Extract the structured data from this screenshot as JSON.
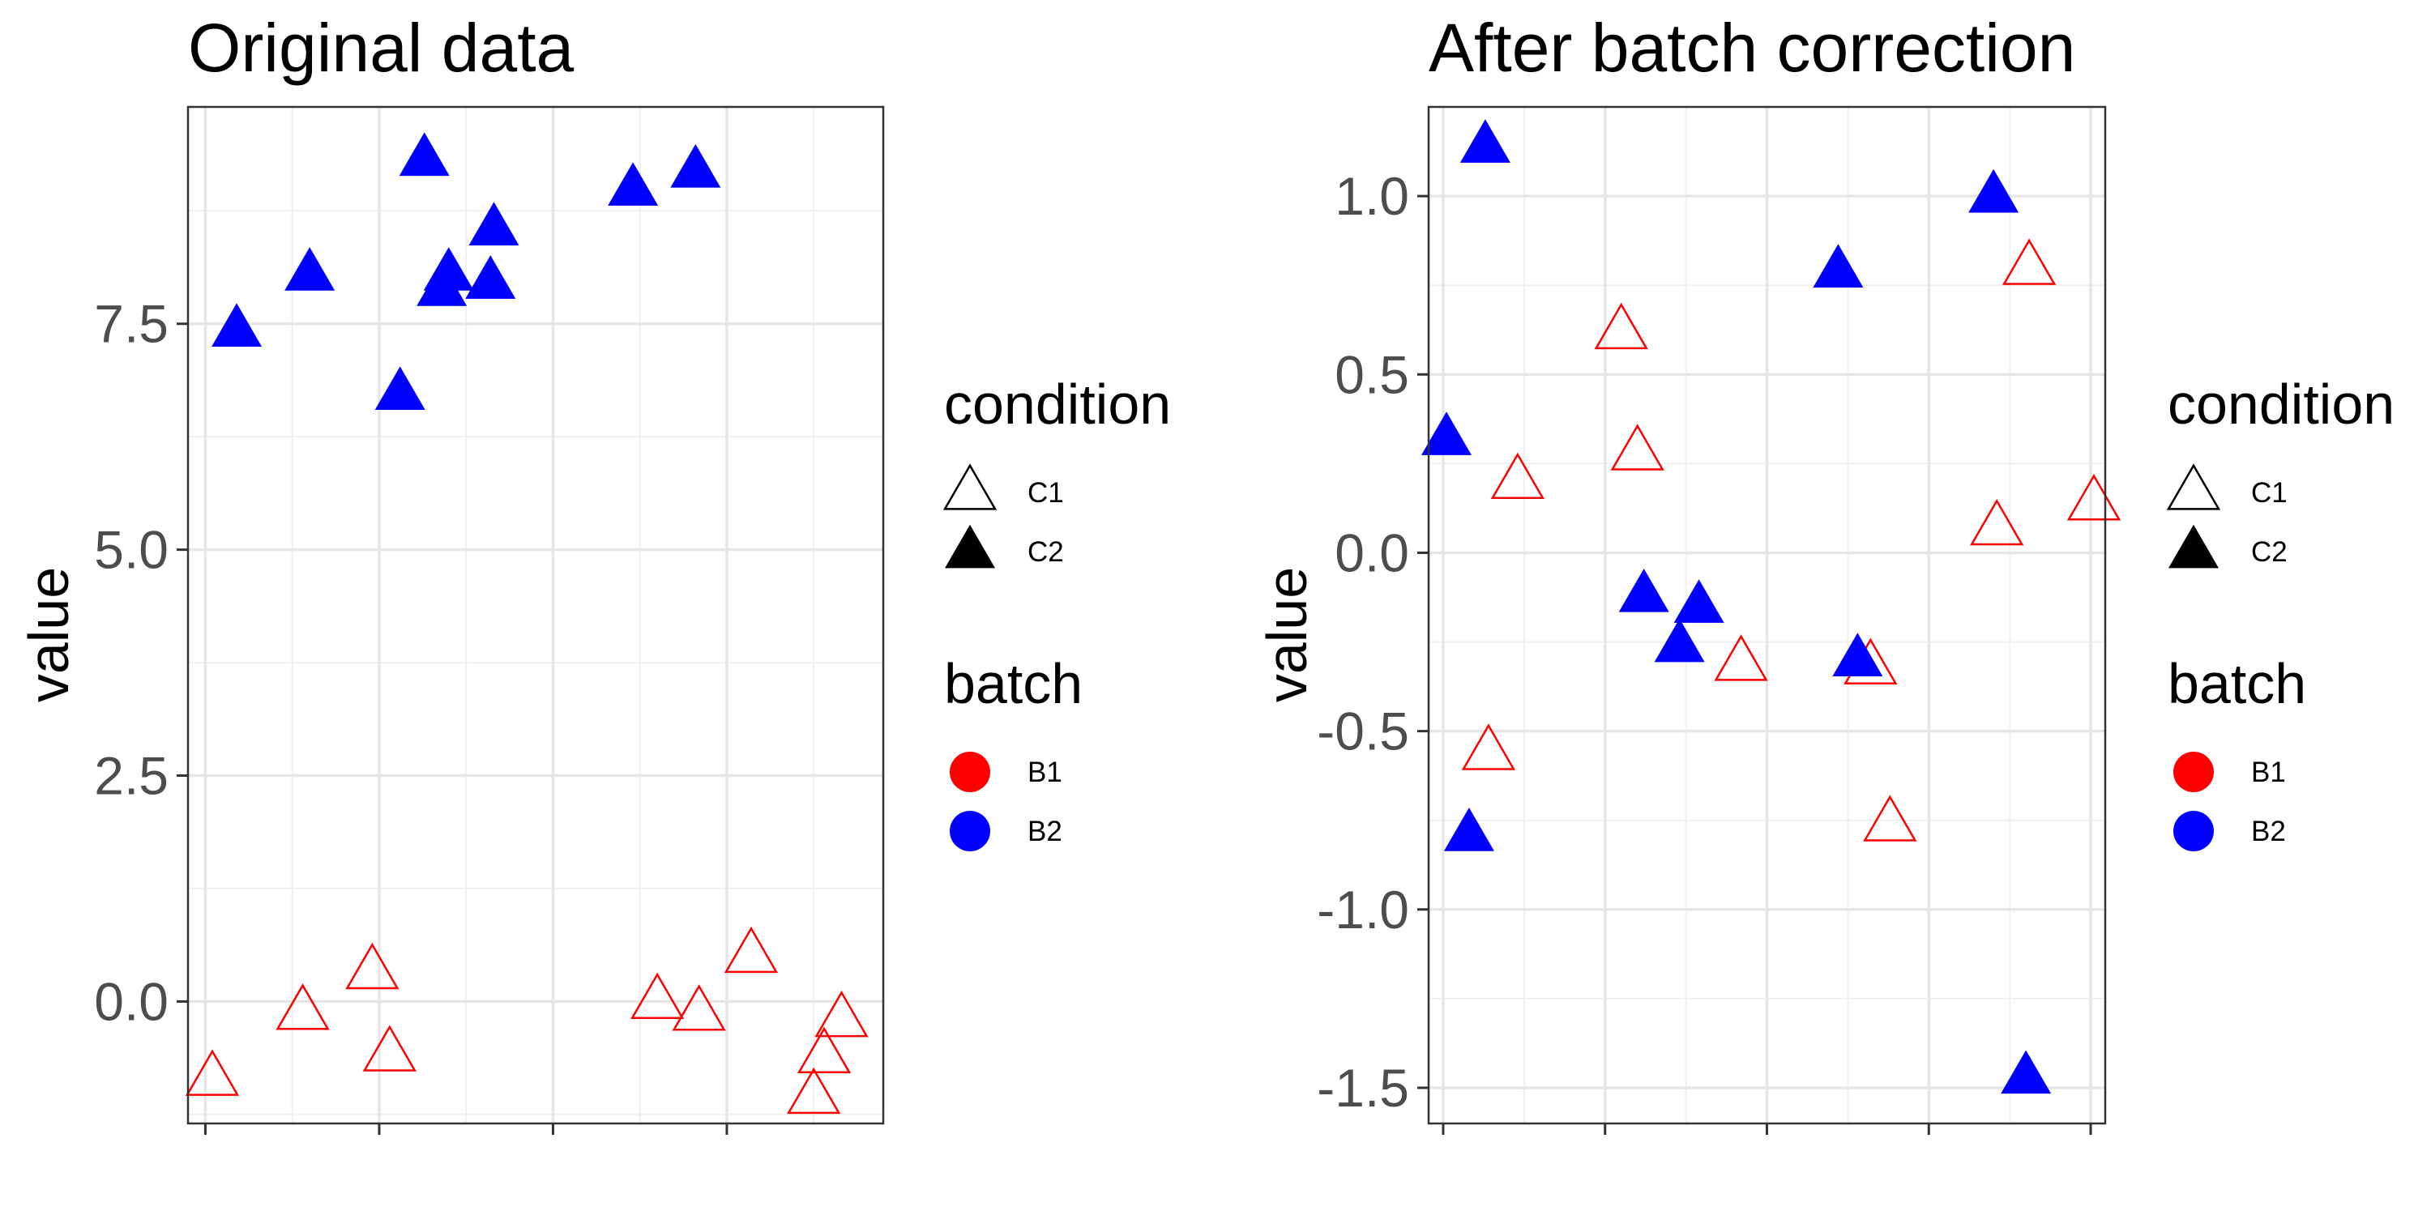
{
  "chart_data": [
    {
      "type": "scatter",
      "title": "Original data",
      "xlabel": "",
      "ylabel": "value",
      "xlim": [
        0.5,
        20.5
      ],
      "ylim": [
        -1.35,
        9.9
      ],
      "x_ticks": [
        1,
        6,
        11,
        16
      ],
      "y_ticks": [
        0.0,
        2.5,
        5.0,
        7.5
      ],
      "y_tick_labels": [
        "0.0",
        "2.5",
        "5.0",
        "7.5"
      ],
      "grid": true,
      "series": [
        {
          "batch": "B1",
          "condition": "C1",
          "color": "#ff0000",
          "points": [
            {
              "x": 1.2,
              "y": -0.85
            },
            {
              "x": 3.8,
              "y": -0.12
            },
            {
              "x": 5.8,
              "y": 0.33
            },
            {
              "x": 6.3,
              "y": -0.58
            },
            {
              "x": 14.0,
              "y": 0.0
            },
            {
              "x": 15.2,
              "y": -0.13
            },
            {
              "x": 16.7,
              "y": 0.51
            },
            {
              "x": 18.8,
              "y": -0.6
            },
            {
              "x": 18.5,
              "y": -1.05
            },
            {
              "x": 19.3,
              "y": -0.2
            }
          ]
        },
        {
          "batch": "B2",
          "condition": "C2",
          "color": "#0000ff",
          "points": [
            {
              "x": 1.9,
              "y": 7.43
            },
            {
              "x": 4.0,
              "y": 8.05
            },
            {
              "x": 6.6,
              "y": 6.73
            },
            {
              "x": 7.3,
              "y": 9.32
            },
            {
              "x": 8.0,
              "y": 8.05
            },
            {
              "x": 7.8,
              "y": 7.88
            },
            {
              "x": 9.2,
              "y": 7.96
            },
            {
              "x": 9.3,
              "y": 8.55
            },
            {
              "x": 13.3,
              "y": 8.99
            },
            {
              "x": 15.1,
              "y": 9.19
            }
          ]
        }
      ]
    },
    {
      "type": "scatter",
      "title": "After batch correction",
      "xlabel": "",
      "ylabel": "value",
      "xlim": [
        0.55,
        21.45
      ],
      "ylim": [
        -1.6,
        1.25
      ],
      "x_ticks": [
        1,
        6,
        11,
        16,
        21
      ],
      "y_ticks": [
        -1.5,
        -1.0,
        -0.5,
        0.0,
        0.5,
        1.0
      ],
      "y_tick_labels": [
        "-1.5",
        "-1.0",
        "-0.5",
        "0.0",
        "0.5",
        "1.0"
      ],
      "grid": true,
      "series": [
        {
          "batch": "B1",
          "condition": "C1",
          "color": "#ff0000",
          "points": [
            {
              "x": 3.3,
              "y": 0.2
            },
            {
              "x": 2.4,
              "y": -0.56
            },
            {
              "x": 6.5,
              "y": 0.62
            },
            {
              "x": 7.0,
              "y": 0.28
            },
            {
              "x": 10.2,
              "y": -0.31
            },
            {
              "x": 14.2,
              "y": -0.32
            },
            {
              "x": 14.8,
              "y": -0.76
            },
            {
              "x": 18.1,
              "y": 0.07
            },
            {
              "x": 19.1,
              "y": 0.8
            },
            {
              "x": 21.1,
              "y": 0.14
            }
          ]
        },
        {
          "batch": "B2",
          "condition": "C2",
          "color": "#0000ff",
          "points": [
            {
              "x": 2.3,
              "y": 1.14
            },
            {
              "x": 1.1,
              "y": 0.32
            },
            {
              "x": 1.8,
              "y": -0.79
            },
            {
              "x": 7.2,
              "y": -0.12
            },
            {
              "x": 8.9,
              "y": -0.15
            },
            {
              "x": 8.3,
              "y": -0.26
            },
            {
              "x": 13.2,
              "y": 0.79
            },
            {
              "x": 13.8,
              "y": -0.3
            },
            {
              "x": 18.0,
              "y": 1.0
            },
            {
              "x": 19.0,
              "y": -1.47
            }
          ]
        }
      ]
    }
  ],
  "legend": {
    "condition_title": "condition",
    "condition_items": [
      {
        "label": "C1",
        "shape": "open-triangle"
      },
      {
        "label": "C2",
        "shape": "filled-triangle"
      }
    ],
    "batch_title": "batch",
    "batch_items": [
      {
        "label": "B1",
        "color": "#ff0000"
      },
      {
        "label": "B2",
        "color": "#0000ff"
      }
    ]
  }
}
